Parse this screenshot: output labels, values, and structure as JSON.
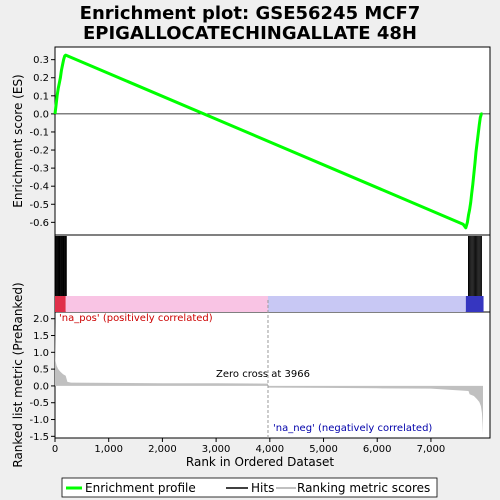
{
  "chart_data": {
    "type": "line",
    "title_lines": [
      "Enrichment plot: GSE56245 MCF7",
      "EPIGALLOCATECHINGALLATE 48H"
    ],
    "xlabel": "Rank in Ordered Dataset",
    "x_tick_labels": [
      "0",
      "1,000",
      "2,000",
      "3,000",
      "4,000",
      "5,000",
      "6,000",
      "7,000"
    ],
    "x_ticks": [
      0,
      1000,
      2000,
      3000,
      4000,
      5000,
      6000,
      7000
    ],
    "xlim": [
      0,
      8100
    ],
    "top_panel": {
      "ylabel": "Enrichment score (ES)",
      "ylim": [
        -0.67,
        0.37
      ],
      "y_ticks": [
        0.3,
        0.2,
        0.1,
        0.0,
        -0.1,
        -0.2,
        -0.3,
        -0.4,
        -0.5,
        -0.6
      ],
      "y_tick_labels": [
        "0.3",
        "0.2",
        "0.1",
        "0.0",
        "-0.1",
        "-0.2",
        "-0.3",
        "-0.4",
        "-0.5",
        "-0.6"
      ],
      "series": [
        {
          "name": "Enrichment profile",
          "color": "#00ff00",
          "x": [
            0,
            20,
            40,
            60,
            80,
            100,
            120,
            140,
            160,
            180,
            200,
            7600,
            7650,
            7680,
            7700,
            7720,
            7740,
            7760,
            7780,
            7800,
            7820,
            7840,
            7860,
            7880,
            7900,
            7920,
            7940,
            7960
          ],
          "y": [
            0.0,
            0.05,
            0.1,
            0.14,
            0.17,
            0.2,
            0.24,
            0.27,
            0.3,
            0.32,
            0.325,
            -0.61,
            -0.63,
            -0.6,
            -0.56,
            -0.53,
            -0.49,
            -0.44,
            -0.39,
            -0.33,
            -0.27,
            -0.21,
            -0.16,
            -0.11,
            -0.06,
            -0.02,
            0.0,
            0.0
          ]
        }
      ]
    },
    "hits_panel": {
      "hit_ranks": [
        0,
        15,
        30,
        45,
        60,
        75,
        90,
        105,
        120,
        135,
        150,
        165,
        180,
        195,
        210,
        7700,
        7720,
        7740,
        7760,
        7780,
        7800,
        7820,
        7840,
        7860,
        7880,
        7900,
        7920,
        7940
      ],
      "color_bar": [
        {
          "from": 0,
          "to": 200,
          "color": "#e0304a"
        },
        {
          "from": 200,
          "to": 3966,
          "color": "#f9c4e4"
        },
        {
          "from": 3966,
          "to": 7650,
          "color": "#c8c8f4"
        },
        {
          "from": 7650,
          "to": 7980,
          "color": "#3636c0"
        }
      ]
    },
    "bottom_panel": {
      "ylabel": "Ranked list metric (PreRanked)",
      "ylim": [
        -1.55,
        2.2
      ],
      "y_ticks": [
        2.0,
        1.5,
        1.0,
        0.5,
        0.0,
        -0.5,
        -1.0,
        -1.5
      ],
      "y_tick_labels": [
        "2.0",
        "1.5",
        "1.0",
        "0.5",
        "0.0",
        "-0.5",
        "-1.0",
        "-1.5"
      ],
      "series": [
        {
          "name": "Ranking metric scores",
          "color": "#c0c0c0",
          "x": [
            0,
            10,
            30,
            60,
            100,
            150,
            200,
            230,
            300,
            1000,
            2000,
            3000,
            3966,
            3967,
            5000,
            6000,
            7000,
            7700,
            7720,
            7800,
            7850,
            7900,
            7930,
            7950,
            7960,
            7970
          ],
          "y": [
            1.9,
            0.75,
            0.6,
            0.5,
            0.42,
            0.35,
            0.3,
            0.12,
            0.1,
            0.09,
            0.08,
            0.08,
            0.07,
            -0.05,
            -0.06,
            -0.07,
            -0.08,
            -0.15,
            -0.25,
            -0.3,
            -0.38,
            -0.48,
            -0.6,
            -0.8,
            -1.1,
            -1.45
          ]
        }
      ],
      "annotations": [
        {
          "text": "'na_pos' (positively correlated)",
          "color": "#cc0000"
        },
        {
          "text": "Zero cross at 3966",
          "color": "#000000"
        },
        {
          "text": "'na_neg' (negatively correlated)",
          "color": "#0000aa"
        }
      ],
      "zero_cross": 3966
    },
    "legend": [
      {
        "label": "Enrichment profile",
        "color": "#00ff00"
      },
      {
        "label": "Hits",
        "color": "#000000"
      },
      {
        "label": "Ranking metric scores",
        "color": "#c0c0c0"
      }
    ]
  }
}
